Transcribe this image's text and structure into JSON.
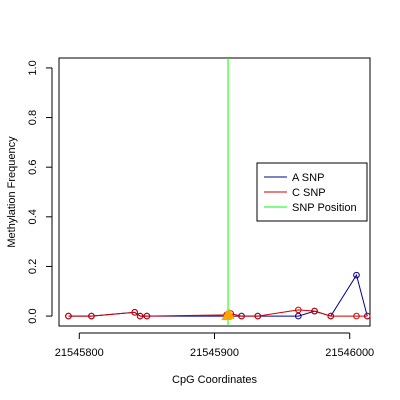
{
  "chart_data": {
    "type": "line",
    "xlabel": "CpG Coordinates",
    "ylabel": "Methylation Frequency",
    "xlim": [
      21545785,
      21546015
    ],
    "ylim": [
      -0.04,
      1.04
    ],
    "x_ticks": [
      21545800,
      21545900,
      21546000
    ],
    "y_ticks": [
      0.0,
      0.2,
      0.4,
      0.6,
      0.8,
      1.0
    ],
    "x_tick_labels": [
      "21545800",
      "21545900",
      "21546000"
    ],
    "y_tick_labels": [
      "0.0",
      "0.2",
      "0.4",
      "0.6",
      "0.8",
      "1.0"
    ],
    "grid": false,
    "legend_position": "right",
    "legend": [
      {
        "name": "A SNP",
        "color": "#00008b"
      },
      {
        "name": "C SNP",
        "color": "#cd0000"
      },
      {
        "name": "SNP Position",
        "color": "#00ff00"
      }
    ],
    "snp_position": 21545910,
    "series": [
      {
        "name": "A SNP",
        "color": "#00008b",
        "points": [
          [
            21545792,
            0.0
          ],
          [
            21545809,
            0.0
          ],
          [
            21545841,
            0.015
          ],
          [
            21545845,
            0.0
          ],
          [
            21545850,
            0.0
          ],
          [
            21545909,
            0.0
          ],
          [
            21545920,
            0.0
          ],
          [
            21545932,
            0.0
          ],
          [
            21545962,
            0.0
          ],
          [
            21545974,
            0.02
          ],
          [
            21545986,
            0.0
          ],
          [
            21546005,
            0.165
          ],
          [
            21546013,
            0.0
          ]
        ]
      },
      {
        "name": "C SNP",
        "color": "#cd0000",
        "points": [
          [
            21545792,
            0.0
          ],
          [
            21545809,
            0.0
          ],
          [
            21545841,
            0.015
          ],
          [
            21545845,
            0.0
          ],
          [
            21545850,
            0.0
          ],
          [
            21545909,
            0.005
          ],
          [
            21545912,
            0.01
          ],
          [
            21545920,
            0.0
          ],
          [
            21545932,
            0.0
          ],
          [
            21545962,
            0.025
          ],
          [
            21545974,
            0.02
          ],
          [
            21545986,
            0.0
          ],
          [
            21546005,
            0.0
          ],
          [
            21546013,
            0.0
          ]
        ]
      }
    ],
    "snp_markers": [
      {
        "x": 21545909,
        "y": 0.0,
        "color": "#ffa500"
      },
      {
        "x": 21545911,
        "y": 0.005,
        "color": "#ffa500"
      }
    ]
  }
}
